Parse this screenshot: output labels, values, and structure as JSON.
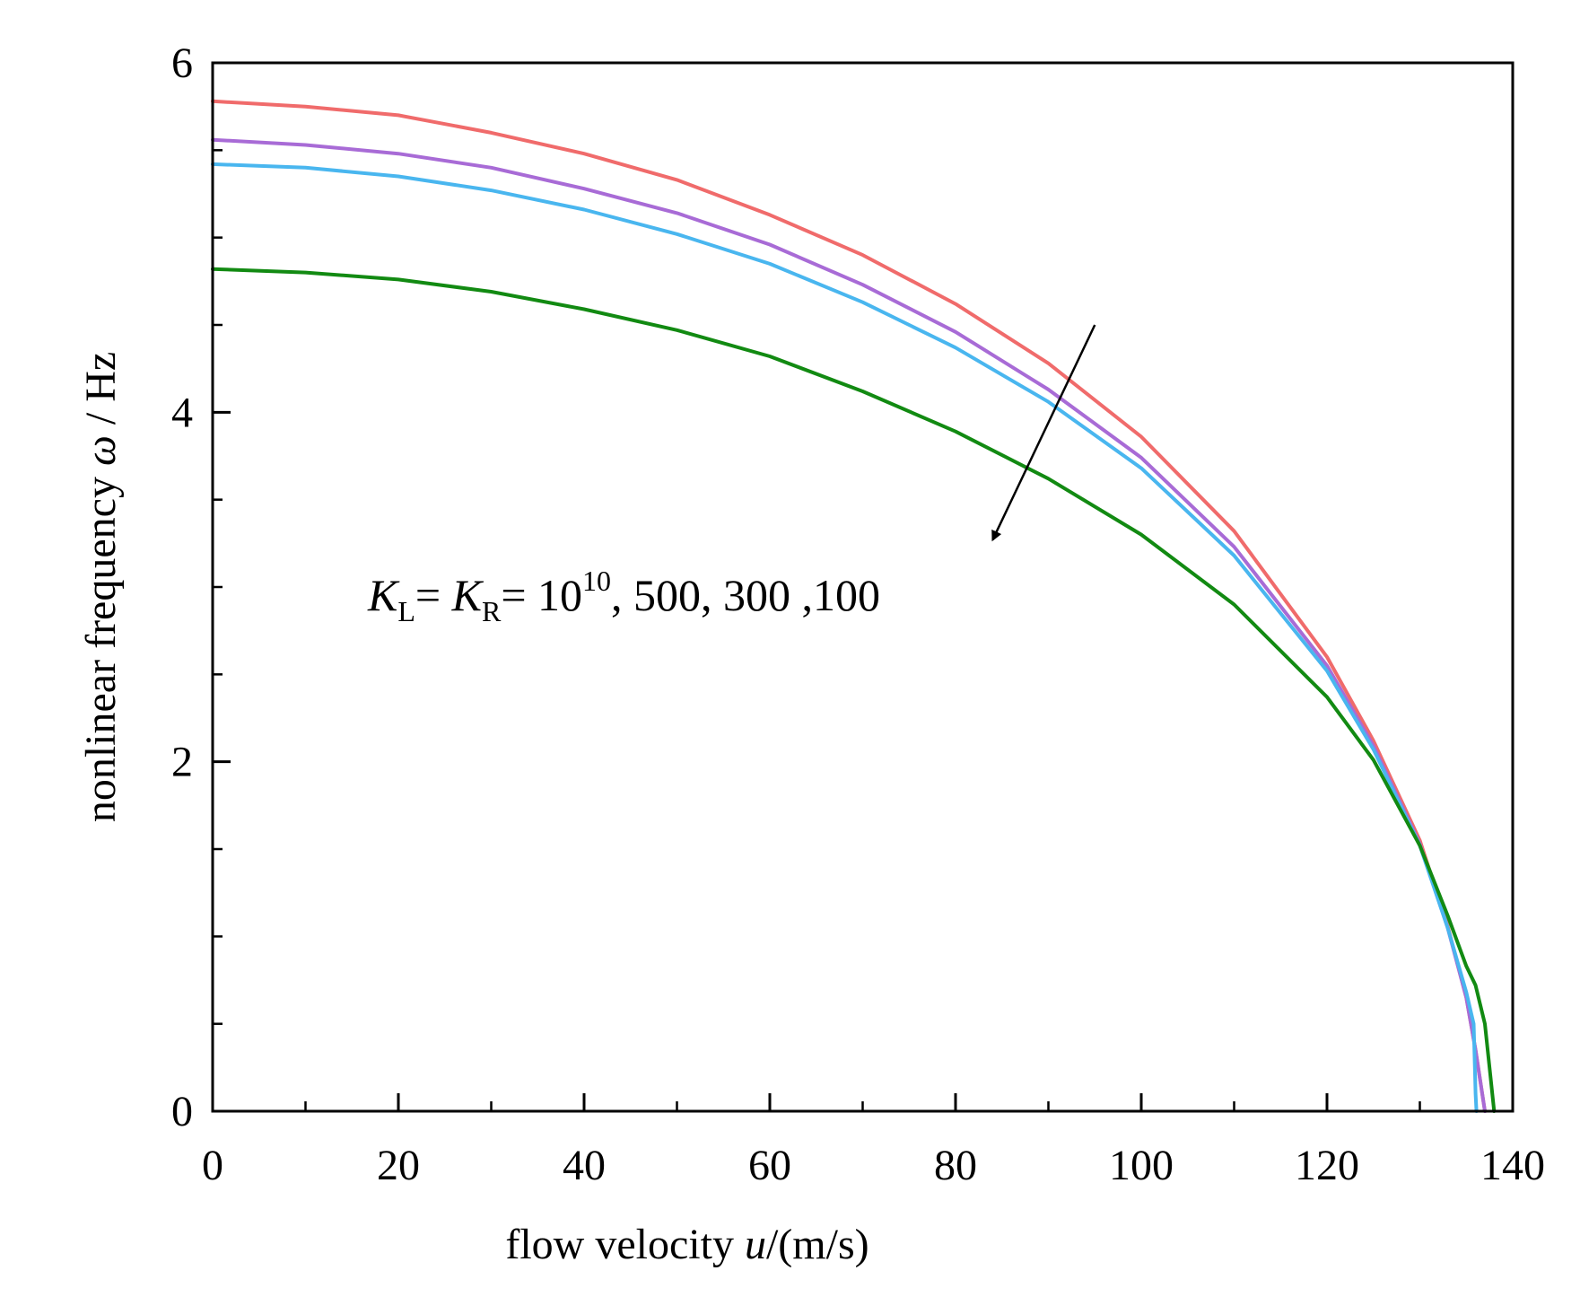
{
  "chart_data": {
    "type": "line",
    "title": "",
    "xlabel_prefix": "flow velocity ",
    "xlabel_var": "u",
    "xlabel_unit": "/(m/s)",
    "ylabel_prefix": "nonlinear frequency ",
    "ylabel_var": "ω",
    "ylabel_unit": " / Hz",
    "xlim": [
      0,
      140
    ],
    "ylim": [
      0,
      6
    ],
    "xticks": [
      0,
      20,
      40,
      60,
      80,
      100,
      120,
      140
    ],
    "xticks_minor": [
      10,
      30,
      50,
      70,
      90,
      110,
      130
    ],
    "yticks": [
      0,
      2,
      4,
      6
    ],
    "yticks_minor": [
      0.5,
      1,
      1.5,
      2.5,
      3,
      3.5,
      4.5,
      5,
      5.5
    ],
    "series": [
      {
        "name": "K_L = K_R = 10^10",
        "color": "#f06b6b",
        "x": [
          0,
          10,
          20,
          30,
          40,
          50,
          60,
          70,
          80,
          90,
          100,
          110,
          120,
          125,
          130,
          133,
          135,
          136,
          137
        ],
        "y": [
          5.78,
          5.75,
          5.7,
          5.6,
          5.48,
          5.33,
          5.13,
          4.9,
          4.62,
          4.28,
          3.86,
          3.32,
          2.6,
          2.12,
          1.55,
          1.06,
          0.65,
          0.35,
          0.0
        ]
      },
      {
        "name": "K = 500",
        "color": "#a86bd6",
        "x": [
          0,
          10,
          20,
          30,
          40,
          50,
          60,
          70,
          80,
          90,
          100,
          110,
          120,
          125,
          130,
          133,
          135,
          136,
          137
        ],
        "y": [
          5.56,
          5.53,
          5.48,
          5.4,
          5.28,
          5.14,
          4.96,
          4.73,
          4.46,
          4.13,
          3.74,
          3.23,
          2.55,
          2.09,
          1.53,
          1.05,
          0.65,
          0.35,
          0.0
        ]
      },
      {
        "name": "K = 300",
        "color": "#49b6ef",
        "x": [
          0,
          10,
          20,
          30,
          40,
          50,
          60,
          70,
          80,
          90,
          100,
          110,
          120,
          125,
          130,
          133,
          135,
          135.8,
          136,
          136.1
        ],
        "y": [
          5.42,
          5.4,
          5.35,
          5.27,
          5.16,
          5.02,
          4.85,
          4.63,
          4.37,
          4.06,
          3.68,
          3.18,
          2.52,
          2.07,
          1.52,
          1.05,
          0.68,
          0.5,
          0.1,
          0.0
        ]
      },
      {
        "name": "K = 100",
        "color": "#128a12",
        "x": [
          0,
          10,
          20,
          30,
          40,
          50,
          60,
          70,
          80,
          90,
          100,
          110,
          120,
          125,
          130,
          133,
          135,
          136,
          137,
          137.6,
          138
        ],
        "y": [
          4.82,
          4.8,
          4.76,
          4.69,
          4.59,
          4.47,
          4.32,
          4.12,
          3.89,
          3.62,
          3.3,
          2.9,
          2.37,
          2.01,
          1.52,
          1.12,
          0.83,
          0.72,
          0.5,
          0.2,
          0.0
        ]
      }
    ],
    "annotation": {
      "k1": "K",
      "sub1": "L",
      "eq1": "= ",
      "k2": "K",
      "sub2": "R",
      "eq2": "= 10",
      "sup": "10",
      "rest": ", 500, 300 ,100"
    },
    "arrow": {
      "from": [
        95,
        4.5
      ],
      "to": [
        84,
        3.27
      ]
    }
  }
}
